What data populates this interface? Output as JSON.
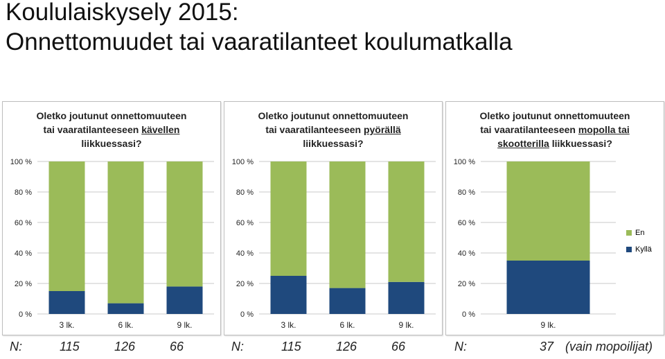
{
  "title": {
    "line1": "Koululaiskysely 2015:",
    "line2": "Onnettomuudet tai vaaratilanteet koulumatkalla"
  },
  "colors": {
    "kylla": "#1F497D",
    "en": "#9BBB59",
    "grid": "#c8c8c8"
  },
  "legend": {
    "en": "En",
    "kylla": "Kyllä"
  },
  "chart_data": [
    {
      "type": "bar",
      "stacked": true,
      "title_parts": {
        "line1": "Oletko joutunut onnettomuuteen",
        "line2_pre": "tai vaaratilanteeseen ",
        "line2_u": "kävellen",
        "line2_post": "",
        "line3_u": "",
        "line3_post": "liikkuessasi?"
      },
      "categories": [
        "3 lk.",
        "6 lk.",
        "9 lk."
      ],
      "series": [
        {
          "name": "Kyllä",
          "values": [
            15,
            7,
            18
          ]
        },
        {
          "name": "En",
          "values": [
            85,
            93,
            82
          ]
        }
      ],
      "yticks": [
        "0 %",
        "20 %",
        "40 %",
        "60 %",
        "80 %",
        "100 %"
      ],
      "ylim": [
        0,
        100
      ]
    },
    {
      "type": "bar",
      "stacked": true,
      "title_parts": {
        "line1": "Oletko joutunut onnettomuuteen",
        "line2_pre": "tai vaaratilanteeseen ",
        "line2_u": "pyörällä",
        "line2_post": "",
        "line3_u": "",
        "line3_post": "liikkuessasi?"
      },
      "categories": [
        "3 lk.",
        "6 lk.",
        "9 lk."
      ],
      "series": [
        {
          "name": "Kyllä",
          "values": [
            25,
            17,
            21
          ]
        },
        {
          "name": "En",
          "values": [
            75,
            83,
            79
          ]
        }
      ],
      "yticks": [
        "0 %",
        "20 %",
        "40 %",
        "60 %",
        "80 %",
        "100 %"
      ],
      "ylim": [
        0,
        100
      ]
    },
    {
      "type": "bar",
      "stacked": true,
      "title_parts": {
        "line1": "Oletko joutunut onnettomuuteen",
        "line2_pre": "tai vaaratilanteeseen ",
        "line2_u": "mopolla tai",
        "line2_post": "",
        "line3_u": "skootterilla",
        "line3_post": " liikkuessasi?"
      },
      "categories": [
        "9 lk."
      ],
      "series": [
        {
          "name": "Kyllä",
          "values": [
            35
          ]
        },
        {
          "name": "En",
          "values": [
            65
          ]
        }
      ],
      "yticks": [
        "0 %",
        "20 %",
        "40 %",
        "60 %",
        "80 %",
        "100 %"
      ],
      "ylim": [
        0,
        100
      ]
    }
  ],
  "n_row": {
    "p1": {
      "label": "N:",
      "values": [
        "115",
        "126",
        "66"
      ]
    },
    "p2": {
      "label": "N:",
      "values": [
        "115",
        "126",
        "66"
      ]
    },
    "p3": {
      "label": "N:",
      "value": "37",
      "note": "(vain mopoilijat)"
    }
  }
}
